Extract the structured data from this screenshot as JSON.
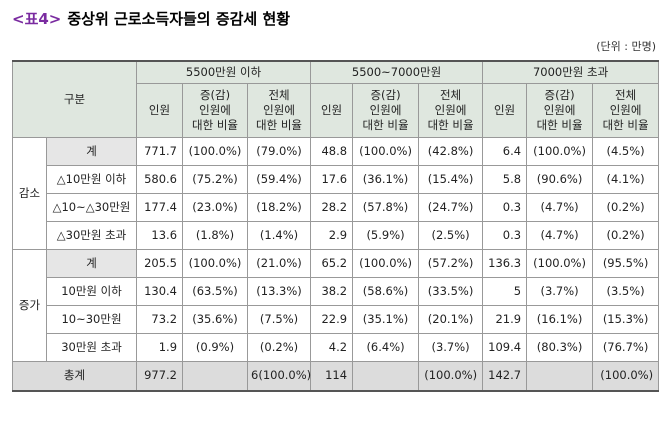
{
  "title": {
    "label": "<표4>",
    "text": "중상위 근로소득자들의 증감세 현황"
  },
  "unit": "(단위 : 만명)",
  "table": {
    "corner": "구분",
    "groups": [
      "5500만원 이하",
      "5500~7000만원",
      "7000만원 초과"
    ],
    "subheaders": [
      "인원",
      "증(감)\n인원에\n대한 비율",
      "전체\n인원에\n대한 비율"
    ],
    "sections": [
      {
        "label": "감소",
        "rows": [
          {
            "label": "계",
            "cells": [
              "771.7",
              "(100.0%)",
              "(79.0%)",
              "48.8",
              "(100.0%)",
              "(42.8%)",
              "6.4",
              "(100.0%)",
              "(4.5%)"
            ]
          },
          {
            "label": "△10만원 이하",
            "cells": [
              "580.6",
              "(75.2%)",
              "(59.4%)",
              "17.6",
              "(36.1%)",
              "(15.4%)",
              "5.8",
              "(90.6%)",
              "(4.1%)"
            ]
          },
          {
            "label": "△10~△30만원",
            "cells": [
              "177.4",
              "(23.0%)",
              "(18.2%)",
              "28.2",
              "(57.8%)",
              "(24.7%)",
              "0.3",
              "(4.7%)",
              "(0.2%)"
            ]
          },
          {
            "label": "△30만원 초과",
            "cells": [
              "13.6",
              "(1.8%)",
              "(1.4%)",
              "2.9",
              "(5.9%)",
              "(2.5%)",
              "0.3",
              "(4.7%)",
              "(0.2%)"
            ]
          }
        ]
      },
      {
        "label": "증가",
        "rows": [
          {
            "label": "계",
            "cells": [
              "205.5",
              "(100.0%)",
              "(21.0%)",
              "65.2",
              "(100.0%)",
              "(57.2%)",
              "136.3",
              "(100.0%)",
              "(95.5%)"
            ]
          },
          {
            "label": "10만원 이하",
            "cells": [
              "130.4",
              "(63.5%)",
              "(13.3%)",
              "38.2",
              "(58.6%)",
              "(33.5%)",
              "5",
              "(3.7%)",
              "(3.5%)"
            ]
          },
          {
            "label": "10~30만원",
            "cells": [
              "73.2",
              "(35.6%)",
              "(7.5%)",
              "22.9",
              "(35.1%)",
              "(20.1%)",
              "21.9",
              "(16.1%)",
              "(15.3%)"
            ]
          },
          {
            "label": "30만원 초과",
            "cells": [
              "1.9",
              "(0.9%)",
              "(0.2%)",
              "4.2",
              "(6.4%)",
              "(3.7%)",
              "109.4",
              "(80.3%)",
              "(76.7%)"
            ]
          }
        ]
      }
    ],
    "total": {
      "label": "총계",
      "groups": [
        {
          "count": "977.2",
          "share": "6(100.0%)"
        },
        {
          "count": "114",
          "share": "(100.0%)"
        },
        {
          "count": "142.7",
          "share": "(100.0%)"
        }
      ]
    }
  }
}
